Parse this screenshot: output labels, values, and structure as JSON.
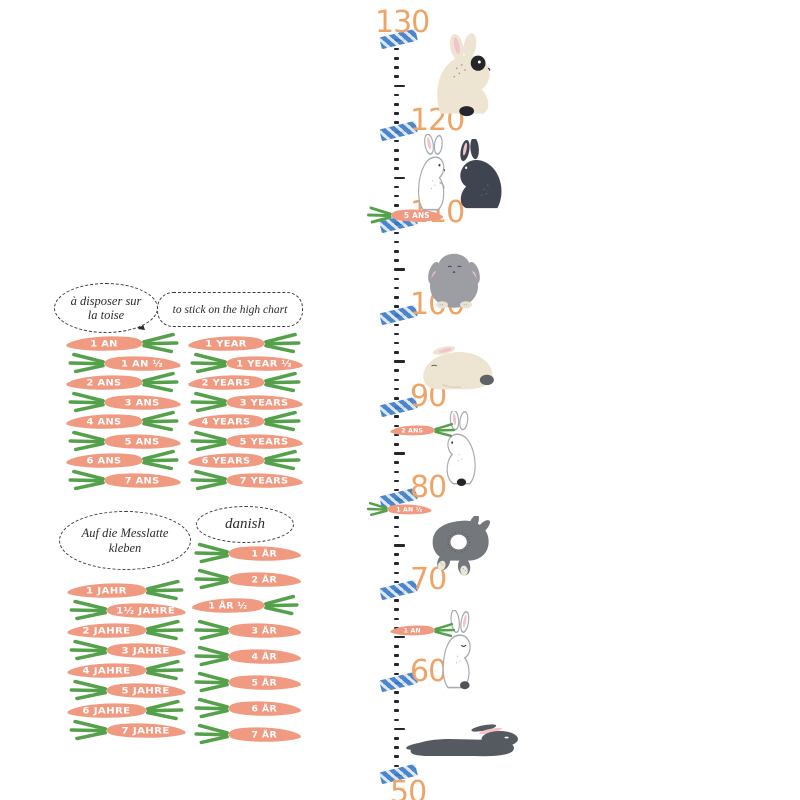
{
  "colors": {
    "carrot_body": "#F09A82",
    "carrot_leaves": "#55A14B",
    "number_orange": "#EFA467",
    "tape_blue": "#3E7CC6",
    "ink": "#2B2B2B",
    "cream_rabbit": "#EDE5D1",
    "dark_rabbit": "#3E4450",
    "grey_rabbit": "#9C9EA3",
    "mid_grey_rabbit": "#74787C",
    "lying_rabbit": "#555A61",
    "pink_ear": "#F4C3CA",
    "outline_grey": "#A8ACB0"
  },
  "left_panel": {
    "french": {
      "bubble_line1": "à disposer sur",
      "bubble_line2": "la toise",
      "carrots": [
        {
          "label": "1 AN",
          "dir": "right"
        },
        {
          "label": "1 AN ½",
          "dir": "left"
        },
        {
          "label": "2 ANS",
          "dir": "right"
        },
        {
          "label": "3 ANS",
          "dir": "left"
        },
        {
          "label": "4 ANS",
          "dir": "right"
        },
        {
          "label": "5 ANS",
          "dir": "left"
        },
        {
          "label": "6 ANS",
          "dir": "right"
        },
        {
          "label": "7 ANS",
          "dir": "left"
        }
      ]
    },
    "english": {
      "bubble_line1": "to stick on the high chart",
      "carrots": [
        {
          "label": "1 YEAR",
          "dir": "right"
        },
        {
          "label": "1 YEAR ½",
          "dir": "left"
        },
        {
          "label": "2 YEARS",
          "dir": "right"
        },
        {
          "label": "3 YEARS",
          "dir": "left"
        },
        {
          "label": "4 YEARS",
          "dir": "right"
        },
        {
          "label": "5 YEARS",
          "dir": "left"
        },
        {
          "label": "6 YEARS",
          "dir": "right"
        },
        {
          "label": "7 YEARS",
          "dir": "left"
        }
      ]
    },
    "german": {
      "bubble_line1": "Auf die Messlatte",
      "bubble_line2": "kleben",
      "carrots": [
        {
          "label": "1 JAHR",
          "dir": "right"
        },
        {
          "label": "1½ JAHRE",
          "dir": "left"
        },
        {
          "label": "2 JAHRE",
          "dir": "right"
        },
        {
          "label": "3 JAHRE",
          "dir": "left"
        },
        {
          "label": "4 JAHRE",
          "dir": "right"
        },
        {
          "label": "5 JAHRE",
          "dir": "left"
        },
        {
          "label": "6 JAHRE",
          "dir": "right"
        },
        {
          "label": "7 JAHRE",
          "dir": "left"
        }
      ]
    },
    "danish": {
      "bubble_line1": "danish",
      "carrots": [
        {
          "label": "1 ÅR",
          "dir": "left"
        },
        {
          "label": "2 ÅR",
          "dir": "left"
        },
        {
          "label": "1 ÅR ½",
          "dir": "right"
        },
        {
          "label": "3 ÅR",
          "dir": "left"
        },
        {
          "label": "4 ÅR",
          "dir": "left"
        },
        {
          "label": "5 ÅR",
          "dir": "left"
        },
        {
          "label": "6 ÅR",
          "dir": "left"
        },
        {
          "label": "7 ÅR",
          "dir": "left"
        }
      ]
    }
  },
  "ruler": {
    "decades": [
      "130",
      "120",
      "110",
      "100",
      "90",
      "80",
      "70",
      "60",
      "50"
    ],
    "sample_carrots": [
      {
        "label": "5 ANS",
        "dir": "left",
        "cm": 111
      },
      {
        "label": "2 ANS",
        "dir": "right",
        "cm": 87.5
      },
      {
        "label": "1 AN ½",
        "dir": "left",
        "cm": 79
      },
      {
        "label": "1 AN",
        "dir": "right",
        "cm": 65.8
      }
    ]
  },
  "rabbits": [
    {
      "name": "cream-rabbit-eye-patch-icon"
    },
    {
      "name": "white-rabbit-standing-icon"
    },
    {
      "name": "dark-rabbit-sitting-icon"
    },
    {
      "name": "grey-lop-rabbit-icon"
    },
    {
      "name": "cream-rabbit-crouching-icon"
    },
    {
      "name": "white-rabbit-sitting-icon"
    },
    {
      "name": "grey-rabbit-rear-view-icon"
    },
    {
      "name": "white-rabbit-sleepy-icon"
    },
    {
      "name": "dark-rabbit-lying-icon"
    }
  ]
}
